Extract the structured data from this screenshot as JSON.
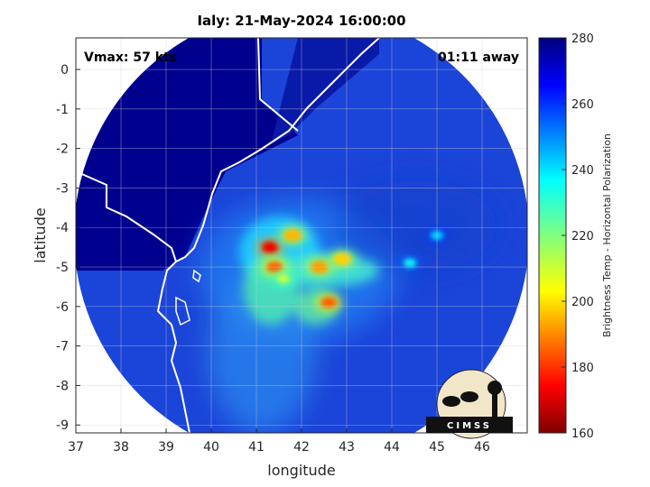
{
  "chart_data": {
    "type": "heatmap",
    "title": "Ialy: 21-May-2024 16:00:00",
    "xlabel": "longitude",
    "ylabel": "latitude",
    "xlim": [
      37,
      47
    ],
    "ylim": [
      -9.2,
      0.8
    ],
    "x_ticks": [
      "37",
      "38",
      "39",
      "40",
      "41",
      "42",
      "43",
      "44",
      "45",
      "46"
    ],
    "y_ticks": [
      "0",
      "-1",
      "-2",
      "-3",
      "-4",
      "-5",
      "-6",
      "-7",
      "-8",
      "-9"
    ],
    "grid": true,
    "annotations": {
      "vmax": "Vmax: 57 kts",
      "time_away": "01:11 away"
    },
    "colorbar": {
      "label": "Brightness Temp - Horizontal Polarization",
      "range": [
        160,
        280
      ],
      "ticks": [
        "280",
        "260",
        "240",
        "220",
        "200",
        "180",
        "160"
      ],
      "colormap": "jet"
    },
    "storm_center": {
      "lon": 41.7,
      "lat": -4.7
    },
    "scan_center": {
      "lon": 42,
      "lat": -4.2
    },
    "cold_features": [
      {
        "lon": 41.3,
        "lat": -4.5,
        "tb": 172
      },
      {
        "lon": 41.4,
        "lat": -5.0,
        "tb": 185
      },
      {
        "lon": 41.8,
        "lat": -4.2,
        "tb": 195
      },
      {
        "lon": 42.4,
        "lat": -5.0,
        "tb": 192
      },
      {
        "lon": 42.9,
        "lat": -4.8,
        "tb": 198
      },
      {
        "lon": 42.6,
        "lat": -5.9,
        "tb": 185
      },
      {
        "lon": 41.6,
        "lat": -5.3,
        "tb": 210
      },
      {
        "lon": 44.4,
        "lat": -4.9,
        "tb": 235
      },
      {
        "lon": 45.0,
        "lat": -4.2,
        "tb": 240
      }
    ]
  },
  "logo": {
    "text": "CIMSS"
  }
}
